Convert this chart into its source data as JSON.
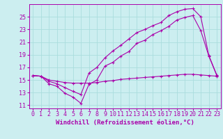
{
  "background_color": "#cceef0",
  "grid_color": "#aadddd",
  "line_color": "#aa00aa",
  "xlabel": "Windchill (Refroidissement éolien,°C)",
  "xlabel_fontsize": 6.5,
  "tick_fontsize": 6.0,
  "xlim": [
    -0.5,
    23.5
  ],
  "ylim": [
    10.5,
    27.0
  ],
  "yticks": [
    11,
    13,
    15,
    17,
    19,
    21,
    23,
    25
  ],
  "xticks": [
    0,
    1,
    2,
    3,
    4,
    5,
    6,
    7,
    8,
    9,
    10,
    11,
    12,
    13,
    14,
    15,
    16,
    17,
    18,
    19,
    20,
    21,
    22,
    23
  ],
  "series1_x": [
    0,
    1,
    2,
    3,
    4,
    5,
    6,
    7,
    8,
    9,
    10,
    11,
    12,
    13,
    14,
    15,
    16,
    17,
    18,
    19,
    20,
    21,
    22,
    23
  ],
  "series1_y": [
    15.7,
    15.6,
    14.4,
    14.0,
    12.9,
    12.3,
    11.3,
    14.3,
    15.0,
    17.2,
    17.8,
    18.8,
    19.5,
    20.8,
    21.3,
    22.2,
    22.8,
    23.5,
    24.5,
    24.9,
    25.2,
    22.8,
    18.8,
    15.7
  ],
  "series2_x": [
    0,
    1,
    2,
    3,
    4,
    5,
    6,
    7,
    8,
    9,
    10,
    11,
    12,
    13,
    14,
    15,
    16,
    17,
    18,
    19,
    20,
    21,
    22,
    23
  ],
  "series2_y": [
    15.7,
    15.6,
    15.0,
    14.8,
    14.6,
    14.5,
    14.5,
    14.5,
    14.6,
    14.8,
    14.9,
    15.1,
    15.2,
    15.3,
    15.4,
    15.5,
    15.6,
    15.7,
    15.8,
    15.9,
    15.9,
    15.8,
    15.7,
    15.6
  ],
  "series3_x": [
    0,
    1,
    2,
    3,
    4,
    5,
    6,
    7,
    8,
    9,
    10,
    11,
    12,
    13,
    14,
    15,
    16,
    17,
    18,
    19,
    20,
    21,
    22,
    23
  ],
  "series3_y": [
    15.7,
    15.6,
    14.8,
    14.4,
    13.8,
    13.2,
    12.7,
    16.1,
    17.0,
    18.5,
    19.6,
    20.5,
    21.5,
    22.5,
    23.0,
    23.6,
    24.1,
    25.2,
    25.8,
    26.2,
    26.3,
    25.0,
    18.9,
    15.8
  ],
  "marker_size": 2.5,
  "line_width": 0.8
}
